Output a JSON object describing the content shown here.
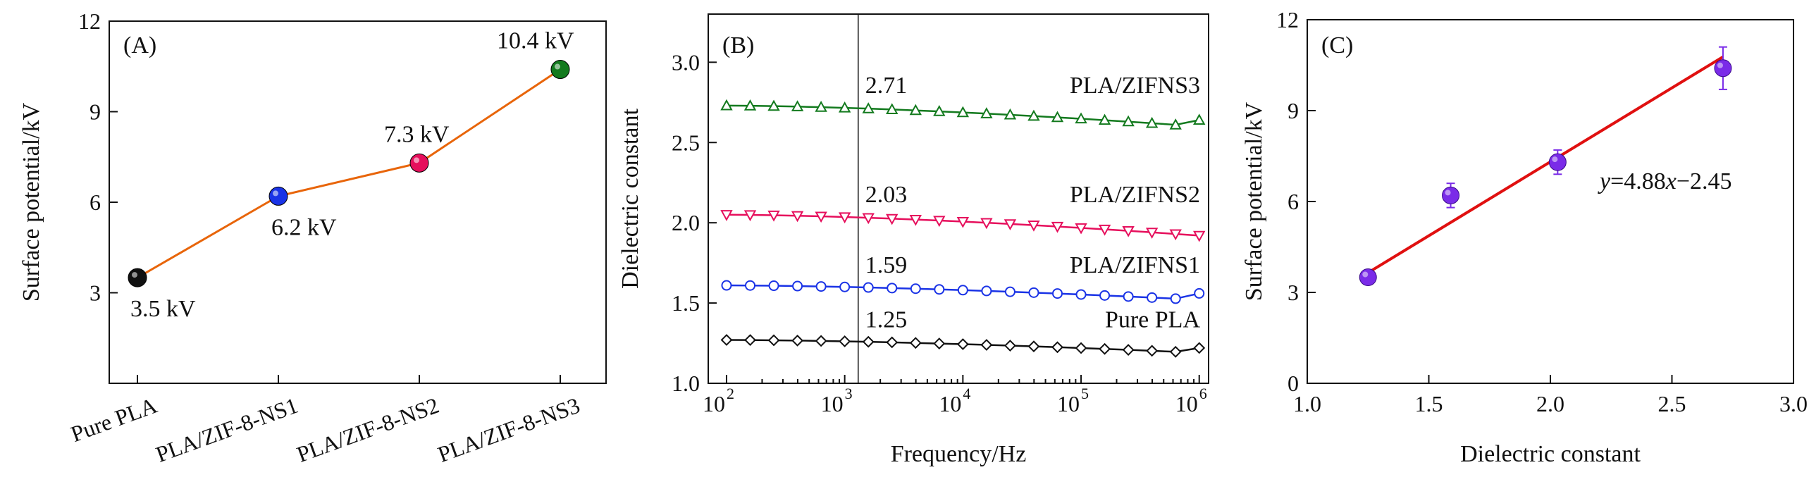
{
  "colors": {
    "axis": "#111111",
    "line_a": "#e8650a",
    "black": "#111111",
    "blue": "#1a33e6",
    "pink": "#e60f5c",
    "green": "#137a1e",
    "fit_red": "#e01010",
    "purple": "#7a2be8"
  },
  "chart_data": [
    {
      "panel": "A",
      "type": "line",
      "label": "(A)",
      "ylabel": "Surface potential/kV",
      "xlabel": "",
      "ylim": [
        0,
        12
      ],
      "yticks": [
        "3",
        "6",
        "9",
        "12"
      ],
      "categories": [
        "Pure PLA",
        "PLA/ZIF-8-NS1",
        "PLA/ZIF-8-NS2",
        "PLA/ZIF-8-NS3"
      ],
      "values": [
        3.5,
        6.2,
        7.3,
        10.4
      ],
      "point_labels": [
        "3.5 kV",
        "6.2 kV",
        "7.3 kV",
        "10.4 kV"
      ],
      "point_colors": [
        "black",
        "blue",
        "pink",
        "green"
      ]
    },
    {
      "panel": "B",
      "type": "line",
      "label": "(B)",
      "xlabel": "Frequency/Hz",
      "ylabel": "Dielectric constant",
      "xscale": "log",
      "xlim": [
        70,
        1200000
      ],
      "ylim": [
        1.0,
        3.3
      ],
      "xticks": [
        {
          "base": "10",
          "exp": "2"
        },
        {
          "base": "10",
          "exp": "3"
        },
        {
          "base": "10",
          "exp": "4"
        },
        {
          "base": "10",
          "exp": "5"
        },
        {
          "base": "10",
          "exp": "6"
        }
      ],
      "yticks": [
        "1.0",
        "1.5",
        "2.0",
        "2.5",
        "3.0"
      ],
      "reference_frequency_hz": 1300,
      "series": [
        {
          "name": "PLA/ZIFNS3",
          "marker": "triangle-up",
          "color": "green",
          "value_at_ref": "2.71",
          "start": 2.73,
          "end": 2.6,
          "last": 2.64
        },
        {
          "name": "PLA/ZIFNS2",
          "marker": "triangle-down",
          "color": "pink",
          "value_at_ref": "2.03",
          "start": 2.05,
          "end": 1.92,
          "last": 1.92
        },
        {
          "name": "PLA/ZIFNS1",
          "marker": "circle",
          "color": "blue",
          "value_at_ref": "1.59",
          "start": 1.61,
          "end": 1.52,
          "last": 1.56
        },
        {
          "name": "Pure PLA",
          "marker": "diamond",
          "color": "black",
          "value_at_ref": "1.25",
          "start": 1.27,
          "end": 1.19,
          "last": 1.22
        }
      ]
    },
    {
      "panel": "C",
      "type": "scatter",
      "label": "(C)",
      "xlabel": "Dielectric constant",
      "ylabel": "Surface potential/kV",
      "xlim": [
        1.0,
        3.0
      ],
      "ylim": [
        0,
        12
      ],
      "xticks": [
        "1.0",
        "1.5",
        "2.0",
        "2.5",
        "3.0"
      ],
      "yticks": [
        "0",
        "3",
        "6",
        "9",
        "12"
      ],
      "points": [
        {
          "x": 1.25,
          "y": 3.5,
          "err": 0.15
        },
        {
          "x": 1.59,
          "y": 6.2,
          "err": 0.4
        },
        {
          "x": 2.03,
          "y": 7.3,
          "err": 0.4
        },
        {
          "x": 2.71,
          "y": 10.4,
          "err": 0.7
        }
      ],
      "fit": {
        "slope": 4.88,
        "intercept": -2.45,
        "x_from": 1.25,
        "x_to": 2.71
      },
      "equation": {
        "y": "y",
        "rest": "=4.88",
        "x": "x",
        "tail": "−2.45"
      }
    }
  ]
}
